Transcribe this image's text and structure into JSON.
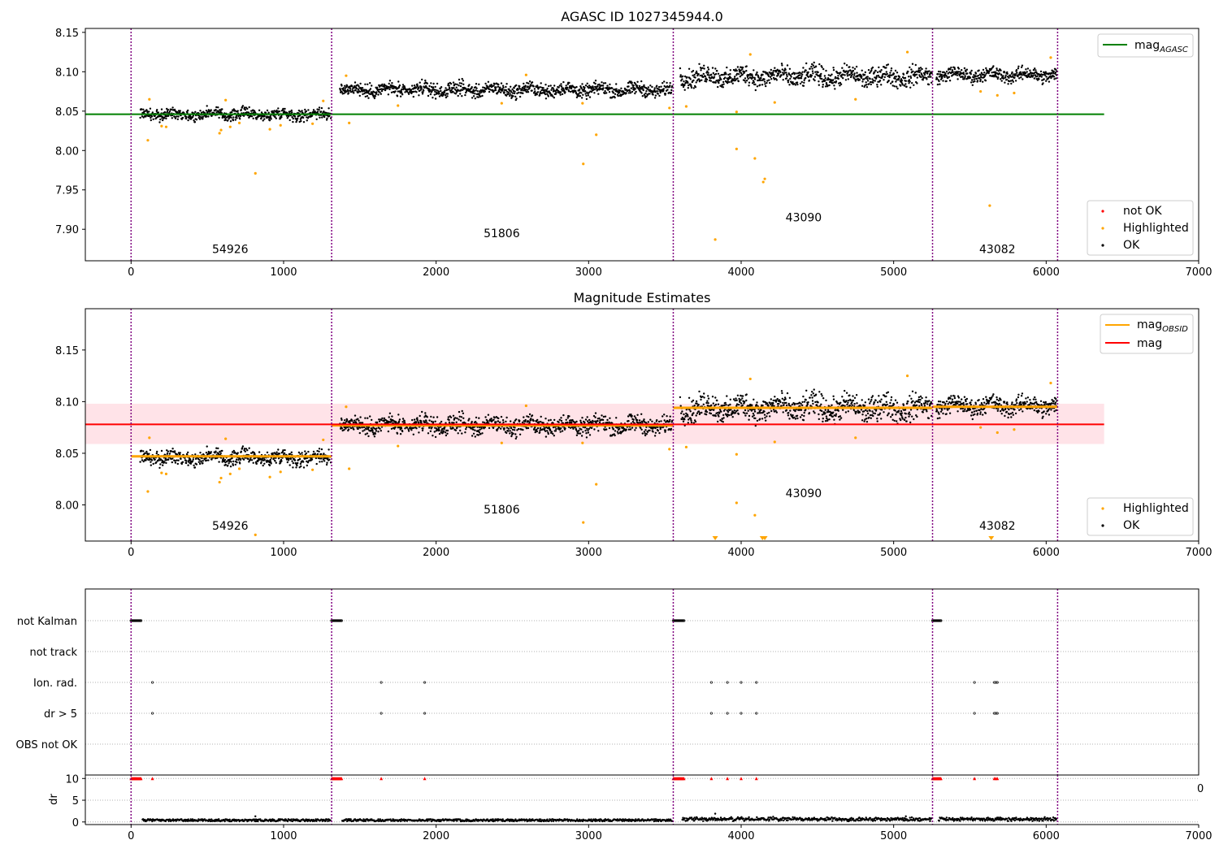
{
  "panel1": {
    "title": "AGASC ID 1027345944.0",
    "y_ticks": [
      "7.90",
      "7.95",
      "8.00",
      "8.05",
      "8.10",
      "8.15"
    ],
    "legend_top": {
      "label_main": "mag",
      "label_sub": "AGASC"
    },
    "legend_bottom": [
      "not OK",
      "Highlighted",
      "OK"
    ]
  },
  "panel2": {
    "title": "Magnitude Estimates",
    "y_ticks": [
      "8.00",
      "8.05",
      "8.10",
      "8.15"
    ],
    "legend_top": [
      {
        "label_main": "mag",
        "label_sub": "OBSID"
      },
      {
        "label_main": "mag",
        "label_sub": ""
      }
    ],
    "legend_bottom": [
      "Highlighted",
      "OK"
    ]
  },
  "panel3": {
    "y_labels": [
      "not Kalman",
      "not track",
      "Ion. rad.",
      "dr > 5",
      "OBS not OK"
    ]
  },
  "panel4": {
    "ylabel": "dr",
    "y_ticks": [
      "0",
      "5",
      "10"
    ],
    "clipped_tick": "0"
  },
  "x_ticks": [
    "0",
    "1000",
    "2000",
    "3000",
    "4000",
    "5000",
    "6000",
    "7000"
  ],
  "colors": {
    "ok": "#000000",
    "highlighted": "#ffa500",
    "not_ok": "#ff0000",
    "mag_agasc": "#008000",
    "mag_obsid": "#ffa500",
    "mag": "#ff0000",
    "band": "#ffc0cb",
    "boundary": "#800080"
  },
  "chart_data": [
    {
      "type": "scatter",
      "title": "AGASC ID 1027345944.0",
      "xlim": [
        -300,
        7000
      ],
      "ylim": [
        7.86,
        8.155
      ],
      "mag_agasc": 8.046,
      "mag_agasc_xrange": [
        -300,
        6380
      ],
      "obs_boundaries": [
        0,
        1315,
        3555,
        5255,
        6075
      ],
      "obsids": [
        {
          "label": "54926",
          "x": 650,
          "y": 7.87
        },
        {
          "label": "51806",
          "x": 2430,
          "y": 7.89
        },
        {
          "label": "43090",
          "x": 4410,
          "y": 7.91
        },
        {
          "label": "43082",
          "x": 5680,
          "y": 7.87
        }
      ],
      "segments": [
        {
          "x": [
            60,
            1310
          ],
          "mean": 8.046,
          "amp": 0.006
        },
        {
          "x": [
            1370,
            3550
          ],
          "mean": 8.077,
          "amp": 0.007
        },
        {
          "x": [
            3600,
            5250
          ],
          "mean": 8.094,
          "amp": 0.01
        },
        {
          "x": [
            5280,
            6070
          ],
          "mean": 8.096,
          "amp": 0.007
        }
      ],
      "highlighted_points": [
        [
          110,
          8.013
        ],
        [
          120,
          8.065
        ],
        [
          200,
          8.031
        ],
        [
          230,
          8.03
        ],
        [
          580,
          8.022
        ],
        [
          590,
          8.026
        ],
        [
          620,
          8.064
        ],
        [
          650,
          8.03
        ],
        [
          710,
          8.035
        ],
        [
          815,
          7.971
        ],
        [
          910,
          8.027
        ],
        [
          980,
          8.032
        ],
        [
          1190,
          8.034
        ],
        [
          1260,
          8.063
        ],
        [
          1430,
          8.035
        ],
        [
          1410,
          8.095
        ],
        [
          1750,
          8.057
        ],
        [
          2430,
          8.06
        ],
        [
          2590,
          8.096
        ],
        [
          2960,
          8.06
        ],
        [
          2965,
          7.983
        ],
        [
          3050,
          8.02
        ],
        [
          3530,
          8.054
        ],
        [
          3640,
          8.056
        ],
        [
          3830,
          7.887
        ],
        [
          3970,
          8.049
        ],
        [
          3970,
          8.002
        ],
        [
          4060,
          8.122
        ],
        [
          4090,
          7.99
        ],
        [
          4145,
          7.96
        ],
        [
          4155,
          7.964
        ],
        [
          4220,
          8.061
        ],
        [
          4750,
          8.065
        ],
        [
          5090,
          8.125
        ],
        [
          5570,
          8.075
        ],
        [
          5630,
          7.93
        ],
        [
          5680,
          8.07
        ],
        [
          5790,
          8.073
        ],
        [
          6030,
          8.118
        ]
      ],
      "legend": [
        "mag AGASC",
        "not OK",
        "Highlighted",
        "OK"
      ]
    },
    {
      "type": "scatter",
      "title": "Magnitude Estimates",
      "xlim": [
        -300,
        7000
      ],
      "ylim": [
        7.965,
        8.19
      ],
      "mag": 8.078,
      "mag_band": [
        8.059,
        8.098
      ],
      "mag_obsid": [
        {
          "x": [
            0,
            1315
          ],
          "y": 8.047
        },
        {
          "x": [
            1315,
            3555
          ],
          "y": 8.077
        },
        {
          "x": [
            3555,
            5255
          ],
          "y": 8.094
        },
        {
          "x": [
            5255,
            6075
          ],
          "y": 8.095
        }
      ],
      "clipped_markers": [
        3830,
        4140,
        4155,
        5640
      ],
      "legend": [
        "mag OBSID",
        "mag",
        "Highlighted",
        "OK"
      ]
    },
    {
      "type": "scatter",
      "flags": [
        "not Kalman",
        "not track",
        "Ion. rad.",
        "dr > 5",
        "OBS not OK"
      ],
      "not_kalman_ranges": [
        [
          0,
          65
        ],
        [
          1315,
          1380
        ],
        [
          3555,
          3625
        ],
        [
          5255,
          5310
        ]
      ],
      "ion_rad_x": [
        140,
        1640,
        1925,
        3805,
        3910,
        4000,
        4100,
        5530,
        5660,
        5670,
        5680
      ],
      "dr_gt5_x": [
        140,
        1640,
        1925,
        3805,
        3910,
        4000,
        4100,
        5530,
        5660,
        5670,
        5680
      ]
    },
    {
      "type": "scatter",
      "ylabel": "dr",
      "ylim": [
        -0.6,
        10.8
      ],
      "cap": 10,
      "capped_ranges": [
        [
          0,
          65
        ],
        [
          1315,
          1380
        ],
        [
          3555,
          3625
        ],
        [
          5255,
          5310
        ]
      ],
      "capped_x": [
        140,
        1640,
        1925,
        3805,
        3910,
        4000,
        4100,
        5530,
        5660,
        5670,
        5680
      ],
      "outliers": [
        [
          815,
          1.3
        ],
        [
          3830,
          1.9
        ],
        [
          4210,
          1.2
        ],
        [
          5080,
          1.3
        ]
      ]
    }
  ]
}
